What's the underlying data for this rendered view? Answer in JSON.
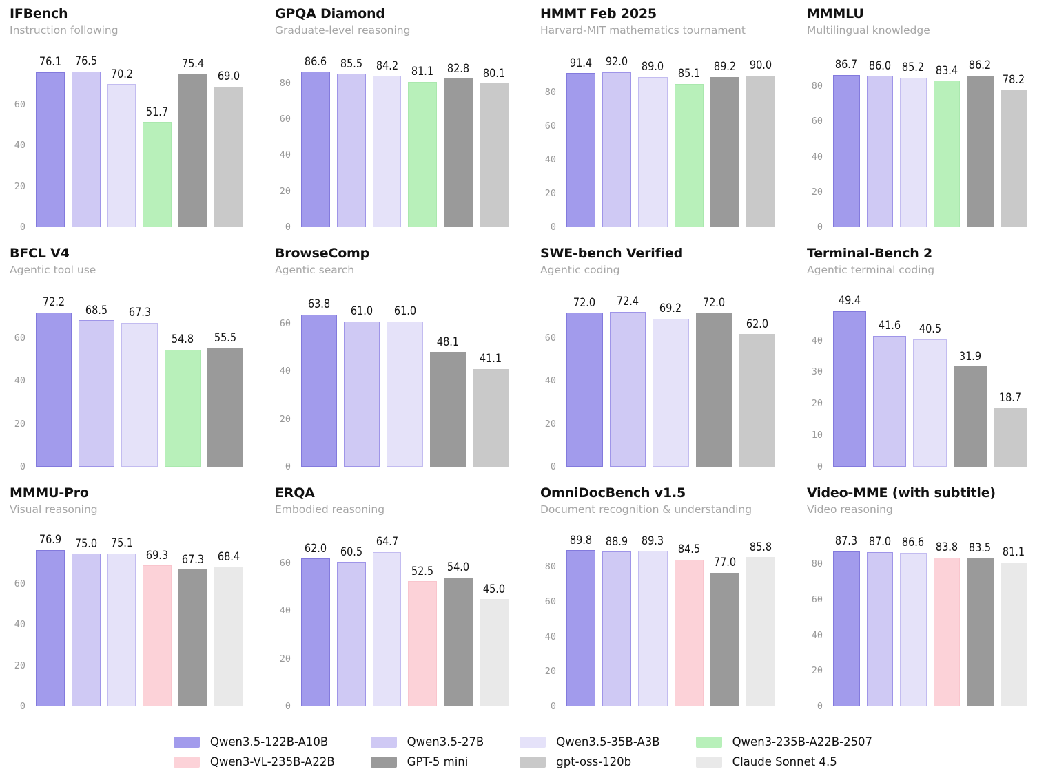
{
  "palette": {
    "q122": {
      "fill": "#a29bec",
      "border": "#837add"
    },
    "q27": {
      "fill": "#cfc9f4",
      "border": "#9f95e8"
    },
    "q35": {
      "fill": "#e5e2f9",
      "border": "#c3bcf0"
    },
    "q2507": {
      "fill": "#b8f0ba",
      "border": "#aae8ae"
    },
    "qvl": {
      "fill": "#fcd2d8",
      "border": "#f9c5cd"
    },
    "gpt5mini": {
      "fill": "#9a9a9a",
      "border": "#9a9a9a"
    },
    "gptoss": {
      "fill": "#c9c9c9",
      "border": "#c9c9c9"
    },
    "claude": {
      "fill": "#e9e9e9",
      "border": "#e9e9e9"
    }
  },
  "legend": {
    "items": [
      {
        "model": "q122",
        "label": "Qwen3.5-122B-A10B"
      },
      {
        "model": "q27",
        "label": "Qwen3.5-27B"
      },
      {
        "model": "q35",
        "label": "Qwen3.5-35B-A3B"
      },
      {
        "model": "q2507",
        "label": "Qwen3-235B-A22B-2507"
      },
      {
        "model": "qvl",
        "label": "Qwen3-VL-235B-A22B"
      },
      {
        "model": "gpt5mini",
        "label": "GPT-5 mini"
      },
      {
        "model": "gptoss",
        "label": "gpt-oss-120b"
      },
      {
        "model": "claude",
        "label": "Claude Sonnet 4.5"
      }
    ]
  },
  "chart_data": [
    {
      "type": "bar",
      "id": "ifbench",
      "title": "IFBench",
      "subtitle": "Instruction following",
      "categories": [
        "Qwen3.5-122B-A10B",
        "Qwen3.5-27B",
        "Qwen3.5-35B-A3B",
        "Qwen3-235B-A22B-2507",
        "GPT-5 mini",
        "gpt-oss-120b"
      ],
      "models": [
        "q122",
        "q27",
        "q35",
        "q2507",
        "gpt5mini",
        "gptoss"
      ],
      "values": [
        76.1,
        76.5,
        70.2,
        51.7,
        75.4,
        69.0
      ],
      "labels": [
        "76.1",
        "76.5",
        "70.2",
        "51.7",
        "75.4",
        "69.0"
      ],
      "ticks": [
        0,
        20,
        40,
        60
      ],
      "tick_labels": [
        "0",
        "20",
        "40",
        "60"
      ],
      "ylim": [
        0,
        82
      ],
      "grid": false
    },
    {
      "type": "bar",
      "id": "gpqa-diamond",
      "title": "GPQA Diamond",
      "subtitle": "Graduate-level reasoning",
      "categories": [
        "Qwen3.5-122B-A10B",
        "Qwen3.5-27B",
        "Qwen3.5-35B-A3B",
        "Qwen3-235B-A22B-2507",
        "GPT-5 mini",
        "gpt-oss-120b"
      ],
      "models": [
        "q122",
        "q27",
        "q35",
        "q2507",
        "gpt5mini",
        "gptoss"
      ],
      "values": [
        86.6,
        85.5,
        84.2,
        81.1,
        82.8,
        80.1
      ],
      "labels": [
        "86.6",
        "85.5",
        "84.2",
        "81.1",
        "82.8",
        "80.1"
      ],
      "ticks": [
        0,
        20,
        40,
        60,
        80
      ],
      "tick_labels": [
        "0",
        "20",
        "40",
        "60",
        "80"
      ],
      "ylim": [
        0,
        93
      ],
      "grid": false
    },
    {
      "type": "bar",
      "id": "hmmt-feb-2025",
      "title": "HMMT Feb 2025",
      "subtitle": "Harvard-MIT mathematics tournament",
      "categories": [
        "Qwen3.5-122B-A10B",
        "Qwen3.5-27B",
        "Qwen3.5-35B-A3B",
        "Qwen3-235B-A22B-2507",
        "GPT-5 mini",
        "gpt-oss-120b"
      ],
      "models": [
        "q122",
        "q27",
        "q35",
        "q2507",
        "gpt5mini",
        "gptoss"
      ],
      "values": [
        91.4,
        92.0,
        89.0,
        85.1,
        89.2,
        90.0
      ],
      "labels": [
        "91.4",
        "92.0",
        "89.0",
        "85.1",
        "89.2",
        "90.0"
      ],
      "ticks": [
        0,
        20,
        40,
        60,
        80
      ],
      "tick_labels": [
        "0",
        "20",
        "40",
        "60",
        "80"
      ],
      "ylim": [
        0,
        99
      ],
      "grid": false
    },
    {
      "type": "bar",
      "id": "mmmlu",
      "title": "MMMLU",
      "subtitle": "Multilingual knowledge",
      "categories": [
        "Qwen3.5-122B-A10B",
        "Qwen3.5-27B",
        "Qwen3.5-35B-A3B",
        "Qwen3-235B-A22B-2507",
        "GPT-5 mini",
        "gpt-oss-120b"
      ],
      "models": [
        "q122",
        "q27",
        "q35",
        "q2507",
        "gpt5mini",
        "gptoss"
      ],
      "values": [
        86.7,
        86.0,
        85.2,
        83.4,
        86.2,
        78.2
      ],
      "labels": [
        "86.7",
        "86.0",
        "85.2",
        "83.4",
        "86.2",
        "78.2"
      ],
      "ticks": [
        0,
        20,
        40,
        60,
        80
      ],
      "tick_labels": [
        "0",
        "20",
        "40",
        "60",
        "80"
      ],
      "ylim": [
        0,
        95
      ],
      "grid": false
    },
    {
      "type": "bar",
      "id": "bfcl-v4",
      "title": "BFCL V4",
      "subtitle": "Agentic tool use",
      "categories": [
        "Qwen3.5-122B-A10B",
        "Qwen3.5-27B",
        "Qwen3.5-35B-A3B",
        "Qwen3-235B-A22B-2507",
        "GPT-5 mini"
      ],
      "models": [
        "q122",
        "q27",
        "q35",
        "q2507",
        "gpt5mini"
      ],
      "values": [
        72.2,
        68.5,
        67.3,
        54.8,
        55.5
      ],
      "labels": [
        "72.2",
        "68.5",
        "67.3",
        "54.8",
        "55.5"
      ],
      "ticks": [
        0,
        20,
        40,
        60
      ],
      "tick_labels": [
        "0",
        "20",
        "40",
        "60"
      ],
      "ylim": [
        0,
        78
      ],
      "grid": false
    },
    {
      "type": "bar",
      "id": "browsecomp",
      "title": "BrowseComp",
      "subtitle": "Agentic search",
      "categories": [
        "Qwen3.5-122B-A10B",
        "Qwen3.5-27B",
        "Qwen3.5-35B-A3B",
        "GPT-5 mini",
        "gpt-oss-120b"
      ],
      "models": [
        "q122",
        "q27",
        "q35",
        "gpt5mini",
        "gptoss"
      ],
      "values": [
        63.8,
        61.0,
        61.0,
        48.1,
        41.1
      ],
      "labels": [
        "63.8",
        "61.0",
        "61.0",
        "48.1",
        "41.1"
      ],
      "ticks": [
        0,
        20,
        40,
        60
      ],
      "tick_labels": [
        "0",
        "20",
        "40",
        "60"
      ],
      "ylim": [
        0,
        70
      ],
      "grid": false
    },
    {
      "type": "bar",
      "id": "swe-bench-verified",
      "title": "SWE-bench Verified",
      "subtitle": "Agentic coding",
      "categories": [
        "Qwen3.5-122B-A10B",
        "Qwen3.5-27B",
        "Qwen3.5-35B-A3B",
        "GPT-5 mini",
        "gpt-oss-120b"
      ],
      "models": [
        "q122",
        "q27",
        "q35",
        "gpt5mini",
        "gptoss"
      ],
      "values": [
        72.0,
        72.4,
        69.2,
        72.0,
        62.0
      ],
      "labels": [
        "72.0",
        "72.4",
        "69.2",
        "72.0",
        "62.0"
      ],
      "ticks": [
        0,
        20,
        40,
        60
      ],
      "tick_labels": [
        "0",
        "20",
        "40",
        "60"
      ],
      "ylim": [
        0,
        78
      ],
      "grid": false
    },
    {
      "type": "bar",
      "id": "terminal-bench-2",
      "title": "Terminal-Bench 2",
      "subtitle": "Agentic terminal coding",
      "categories": [
        "Qwen3.5-122B-A10B",
        "Qwen3.5-27B",
        "Qwen3.5-35B-A3B",
        "GPT-5 mini",
        "gpt-oss-120b"
      ],
      "models": [
        "q122",
        "q27",
        "q35",
        "gpt5mini",
        "gptoss"
      ],
      "values": [
        49.4,
        41.6,
        40.5,
        31.9,
        18.7
      ],
      "labels": [
        "49.4",
        "41.6",
        "40.5",
        "31.9",
        "18.7"
      ],
      "ticks": [
        0,
        10,
        20,
        30,
        40
      ],
      "tick_labels": [
        "0",
        "10",
        "20",
        "30",
        "40"
      ],
      "ylim": [
        0,
        53
      ],
      "grid": false
    },
    {
      "type": "bar",
      "id": "mmmu-pro",
      "title": "MMMU-Pro",
      "subtitle": "Visual reasoning",
      "categories": [
        "Qwen3.5-122B-A10B",
        "Qwen3.5-27B",
        "Qwen3.5-35B-A3B",
        "Qwen3-VL-235B-A22B",
        "GPT-5 mini",
        "Claude Sonnet 4.5"
      ],
      "models": [
        "q122",
        "q27",
        "q35",
        "qvl",
        "gpt5mini",
        "claude"
      ],
      "values": [
        76.9,
        75.0,
        75.1,
        69.3,
        67.3,
        68.4
      ],
      "labels": [
        "76.9",
        "75.0",
        "75.1",
        "69.3",
        "67.3",
        "68.4"
      ],
      "ticks": [
        0,
        20,
        40,
        60
      ],
      "tick_labels": [
        "0",
        "20",
        "40",
        "60"
      ],
      "ylim": [
        0,
        82
      ],
      "grid": false
    },
    {
      "type": "bar",
      "id": "erqa",
      "title": "ERQA",
      "subtitle": "Embodied reasoning",
      "categories": [
        "Qwen3.5-122B-A10B",
        "Qwen3.5-27B",
        "Qwen3.5-35B-A3B",
        "Qwen3-VL-235B-A22B",
        "GPT-5 mini",
        "Claude Sonnet 4.5"
      ],
      "models": [
        "q122",
        "q27",
        "q35",
        "qvl",
        "gpt5mini",
        "claude"
      ],
      "values": [
        62.0,
        60.5,
        64.7,
        52.5,
        54.0,
        45.0
      ],
      "labels": [
        "62.0",
        "60.5",
        "64.7",
        "52.5",
        "54.0",
        "45.0"
      ],
      "ticks": [
        0,
        20,
        40,
        60
      ],
      "tick_labels": [
        "0",
        "20",
        "40",
        "60"
      ],
      "ylim": [
        0,
        70
      ],
      "grid": false
    },
    {
      "type": "bar",
      "id": "omnidocbench",
      "title": "OmniDocBench v1.5",
      "subtitle": "Document recognition & understanding",
      "categories": [
        "Qwen3.5-122B-A10B",
        "Qwen3.5-27B",
        "Qwen3.5-35B-A3B",
        "Qwen3-VL-235B-A22B",
        "GPT-5 mini",
        "Claude Sonnet 4.5"
      ],
      "models": [
        "q122",
        "q27",
        "q35",
        "qvl",
        "gpt5mini",
        "claude"
      ],
      "values": [
        89.8,
        88.9,
        89.3,
        84.5,
        77.0,
        85.8
      ],
      "labels": [
        "89.8",
        "88.9",
        "89.3",
        "84.5",
        "77.0",
        "85.8"
      ],
      "ticks": [
        0,
        20,
        40,
        60,
        80
      ],
      "tick_labels": [
        "0",
        "20",
        "40",
        "60",
        "80"
      ],
      "ylim": [
        0,
        96
      ],
      "grid": false
    },
    {
      "type": "bar",
      "id": "video-mme",
      "title": "Video-MME (with subtitle)",
      "subtitle": "Video reasoning",
      "categories": [
        "Qwen3.5-122B-A10B",
        "Qwen3.5-27B",
        "Qwen3.5-35B-A3B",
        "Qwen3-VL-235B-A22B",
        "GPT-5 mini",
        "Claude Sonnet 4.5"
      ],
      "models": [
        "q122",
        "q27",
        "q35",
        "qvl",
        "gpt5mini",
        "claude"
      ],
      "values": [
        87.3,
        87.0,
        86.6,
        83.8,
        83.5,
        81.1
      ],
      "labels": [
        "87.3",
        "87.0",
        "86.6",
        "83.8",
        "83.5",
        "81.1"
      ],
      "ticks": [
        0,
        20,
        40,
        60,
        80
      ],
      "tick_labels": [
        "0",
        "20",
        "40",
        "60",
        "80"
      ],
      "ylim": [
        0,
        94
      ],
      "grid": false
    }
  ]
}
